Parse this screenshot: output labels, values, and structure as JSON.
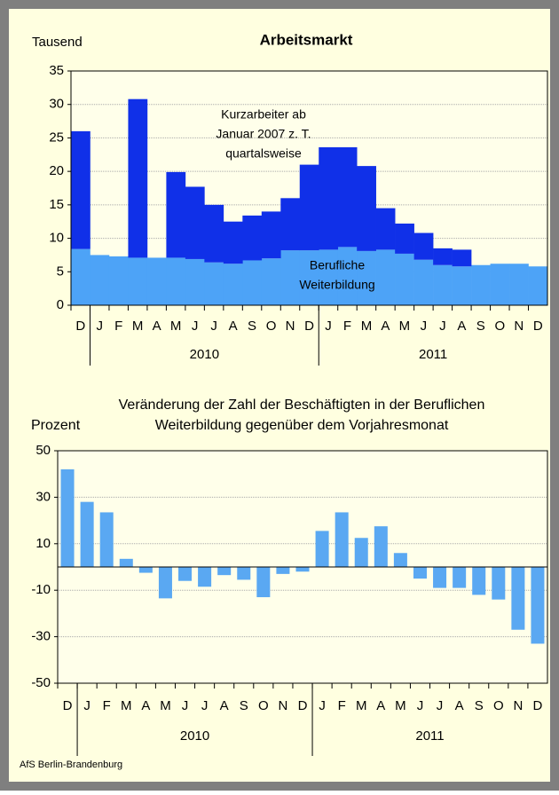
{
  "page": {
    "footer": "AfS Berlin-Brandenburg"
  },
  "chart_data": [
    {
      "type": "stacked_bar",
      "title": "Arbeitsmarkt",
      "y_label": "Tausend",
      "categories": [
        "D",
        "J",
        "F",
        "M",
        "A",
        "M",
        "J",
        "J",
        "A",
        "S",
        "O",
        "N",
        "D",
        "J",
        "F",
        "M",
        "A",
        "M",
        "J",
        "J",
        "A",
        "S",
        "O",
        "N",
        "D"
      ],
      "x_groups": [
        "2010",
        "2011"
      ],
      "series": [
        {
          "name_lines": [
            "Berufliche",
            "Weiterbildung"
          ],
          "color": "#4da3f7",
          "values": [
            8.4,
            7.5,
            7.3,
            7.1,
            7.1,
            7.1,
            6.9,
            6.4,
            6.2,
            6.7,
            7.0,
            8.2,
            8.2,
            8.3,
            8.7,
            8.1,
            8.3,
            7.7,
            6.8,
            6.0,
            5.8,
            6.0,
            6.2,
            6.2,
            5.8
          ]
        },
        {
          "name_lines": [
            "Kurzarbeiter ab",
            "Januar 2007 z. T.",
            "quartalsweise"
          ],
          "color": "#1030e8",
          "values": [
            17.6,
            null,
            null,
            23.7,
            null,
            12.8,
            10.8,
            8.6,
            6.3,
            6.7,
            7.0,
            7.8,
            12.8,
            15.3,
            14.9,
            12.7,
            6.2,
            4.5,
            4.0,
            2.5,
            2.5,
            null,
            null,
            null,
            null
          ]
        }
      ],
      "ylim": [
        0,
        35
      ],
      "yticks": [
        0,
        5,
        10,
        15,
        20,
        25,
        30,
        35
      ],
      "grid": true
    },
    {
      "type": "bar",
      "title_lines": [
        "Veränderung der Zahl der Beschäftigten in der Beruflichen",
        "Weiterbildung gegenüber dem Vorjahresmonat"
      ],
      "y_label": "Prozent",
      "categories": [
        "D",
        "J",
        "F",
        "M",
        "A",
        "M",
        "J",
        "J",
        "A",
        "S",
        "O",
        "N",
        "D",
        "J",
        "F",
        "M",
        "A",
        "M",
        "J",
        "J",
        "A",
        "S",
        "O",
        "N",
        "D"
      ],
      "x_groups": [
        "2010",
        "2011"
      ],
      "color": "#5aa8f2",
      "values": [
        42,
        28,
        23.5,
        3.5,
        -2.5,
        -13.5,
        -6,
        -8.5,
        -3.5,
        -5.5,
        -13,
        -3,
        -2,
        15.5,
        23.5,
        12.5,
        17.5,
        6,
        -5,
        -9,
        -9,
        -12,
        -14,
        -27,
        -33
      ],
      "ylim": [
        -50,
        50
      ],
      "yticks": [
        -50,
        -30,
        -10,
        10,
        30,
        50
      ],
      "grid": true
    }
  ]
}
